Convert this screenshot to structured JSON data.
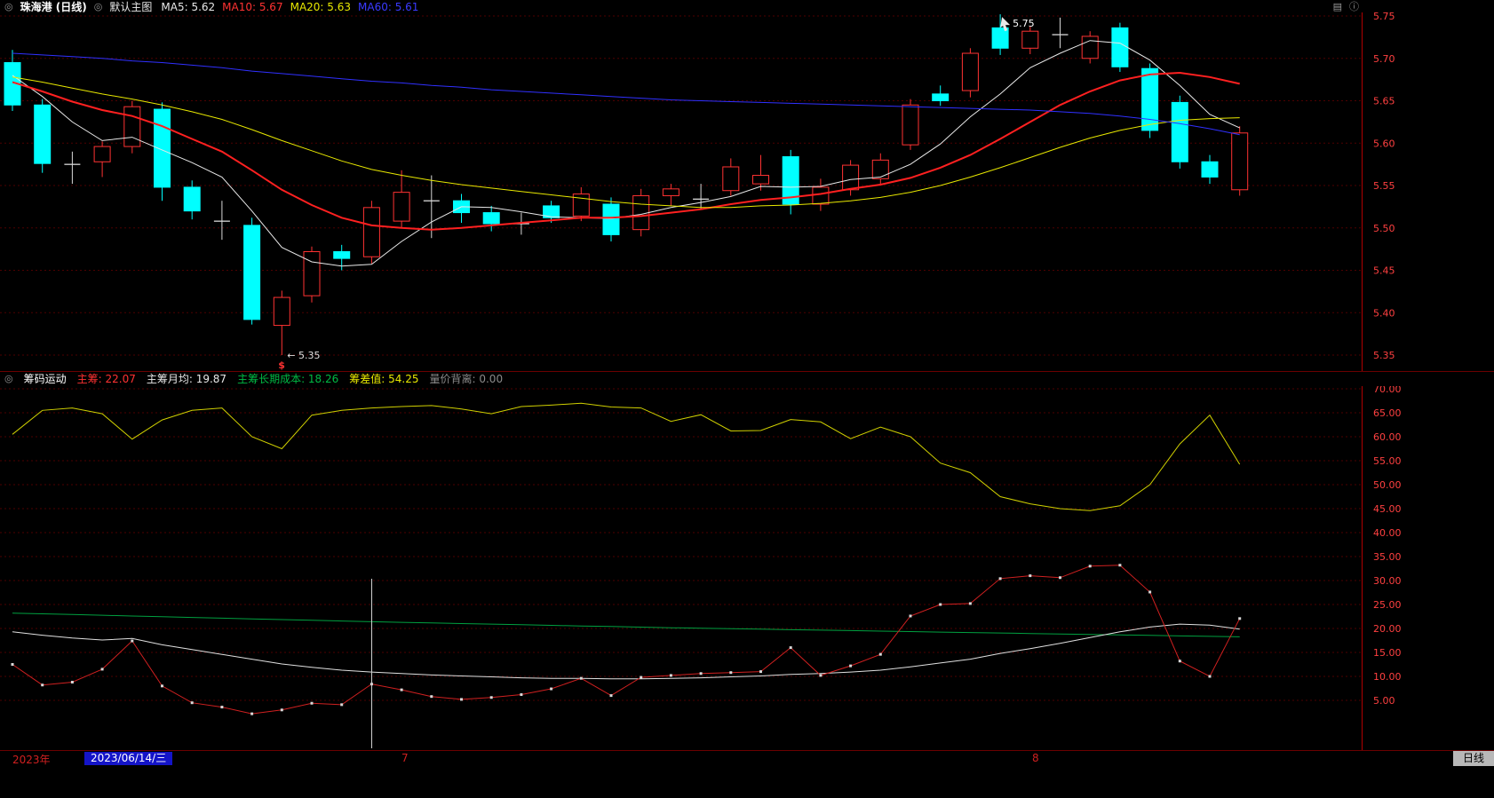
{
  "glyphs": {
    "toggle": "◎",
    "style_icon": "▤",
    "info_icon": "ⓘ"
  },
  "header": {
    "symbol": "珠海港 (日线)",
    "overlay": "默认主图",
    "ma5": "MA5: 5.62",
    "ma10": "MA10: 5.67",
    "ma20": "MA20: 5.63",
    "ma60": "MA60: 5.61"
  },
  "sub_header": {
    "title": "筹码运动",
    "f1": "主筹: 22.07",
    "f2": "主筹月均: 19.87",
    "f3": "主筹长期成本: 18.26",
    "f4": "筹差值: 54.25",
    "f5": "量价背离: 0.00"
  },
  "time_axis": {
    "year": "2023年",
    "selected_date": "2023/06/14/三",
    "months": [
      "7",
      "8"
    ],
    "period": "日线"
  },
  "chart_data": [
    {
      "type": "candlestick",
      "title": "珠海港 日线 主图",
      "y_axis_ticks": [
        "5.75",
        "5.70",
        "5.65",
        "5.60",
        "5.55",
        "5.50",
        "5.45",
        "5.40",
        "5.35"
      ],
      "ylim": [
        5.33,
        5.77
      ],
      "grid": true,
      "legend_position": "top-left",
      "up_color": "#ff3232",
      "down_color": "#00ffff",
      "candles": [
        [
          5.695,
          5.71,
          5.638,
          5.645
        ],
        [
          5.645,
          5.652,
          5.565,
          5.576
        ],
        [
          5.575,
          5.59,
          5.552,
          5.575
        ],
        [
          5.578,
          5.602,
          5.56,
          5.596
        ],
        [
          5.596,
          5.65,
          5.588,
          5.643
        ],
        [
          5.64,
          5.648,
          5.532,
          5.548
        ],
        [
          5.548,
          5.556,
          5.51,
          5.52
        ],
        [
          5.508,
          5.532,
          5.486,
          5.508
        ],
        [
          5.503,
          5.512,
          5.386,
          5.392
        ],
        [
          5.385,
          5.426,
          5.35,
          5.418
        ],
        [
          5.42,
          5.478,
          5.412,
          5.472
        ],
        [
          5.472,
          5.48,
          5.45,
          5.464
        ],
        [
          5.466,
          5.532,
          5.458,
          5.524
        ],
        [
          5.508,
          5.568,
          5.5,
          5.542
        ],
        [
          5.532,
          5.562,
          5.488,
          5.532
        ],
        [
          5.532,
          5.54,
          5.506,
          5.518
        ],
        [
          5.518,
          5.526,
          5.496,
          5.505
        ],
        [
          5.505,
          5.518,
          5.492,
          5.505
        ],
        [
          5.526,
          5.532,
          5.506,
          5.512
        ],
        [
          5.514,
          5.548,
          5.508,
          5.54
        ],
        [
          5.528,
          5.536,
          5.484,
          5.492
        ],
        [
          5.498,
          5.546,
          5.49,
          5.538
        ],
        [
          5.538,
          5.552,
          5.526,
          5.546
        ],
        [
          5.534,
          5.552,
          5.522,
          5.534
        ],
        [
          5.544,
          5.582,
          5.538,
          5.572
        ],
        [
          5.552,
          5.586,
          5.544,
          5.562
        ],
        [
          5.584,
          5.592,
          5.516,
          5.528
        ],
        [
          5.528,
          5.558,
          5.52,
          5.548
        ],
        [
          5.545,
          5.58,
          5.538,
          5.574
        ],
        [
          5.558,
          5.588,
          5.55,
          5.58
        ],
        [
          5.598,
          5.652,
          5.592,
          5.645
        ],
        [
          5.658,
          5.668,
          5.644,
          5.65
        ],
        [
          5.662,
          5.712,
          5.654,
          5.706
        ],
        [
          5.736,
          5.752,
          5.704,
          5.712
        ],
        [
          5.712,
          5.738,
          5.705,
          5.732
        ],
        [
          5.728,
          5.748,
          5.712,
          5.728
        ],
        [
          5.7,
          5.732,
          5.694,
          5.726
        ],
        [
          5.736,
          5.742,
          5.684,
          5.69
        ],
        [
          5.688,
          5.694,
          5.606,
          5.615
        ],
        [
          5.648,
          5.656,
          5.57,
          5.578
        ],
        [
          5.578,
          5.586,
          5.552,
          5.56
        ],
        [
          5.545,
          5.62,
          5.538,
          5.612
        ]
      ],
      "series": [
        {
          "name": "MA5",
          "color": "#e8e8e8",
          "width": 1,
          "values": [
            5.68,
            5.655,
            5.625,
            5.603,
            5.607,
            5.592,
            5.577,
            5.56,
            5.52,
            5.477,
            5.46,
            5.455,
            5.457,
            5.484,
            5.507,
            5.525,
            5.524,
            5.519,
            5.513,
            5.512,
            5.511,
            5.516,
            5.524,
            5.53,
            5.537,
            5.549,
            5.548,
            5.549,
            5.557,
            5.56,
            5.575,
            5.599,
            5.631,
            5.658,
            5.689,
            5.706,
            5.721,
            5.718,
            5.698,
            5.668,
            5.634,
            5.618
          ]
        },
        {
          "name": "MA10",
          "color": "#ff2020",
          "width": 2,
          "values": [
            5.672,
            5.661,
            5.649,
            5.639,
            5.632,
            5.62,
            5.605,
            5.59,
            5.568,
            5.545,
            5.527,
            5.512,
            5.503,
            5.5,
            5.498,
            5.5,
            5.503,
            5.506,
            5.509,
            5.512,
            5.512,
            5.514,
            5.518,
            5.522,
            5.528,
            5.533,
            5.536,
            5.54,
            5.546,
            5.551,
            5.559,
            5.571,
            5.586,
            5.605,
            5.625,
            5.645,
            5.661,
            5.674,
            5.681,
            5.683,
            5.678,
            5.67
          ]
        },
        {
          "name": "MA20",
          "color": "#e8e800",
          "width": 1,
          "values": [
            5.678,
            5.672,
            5.665,
            5.658,
            5.652,
            5.645,
            5.637,
            5.628,
            5.616,
            5.603,
            5.591,
            5.579,
            5.569,
            5.562,
            5.556,
            5.551,
            5.547,
            5.543,
            5.539,
            5.535,
            5.531,
            5.528,
            5.526,
            5.524,
            5.524,
            5.526,
            5.527,
            5.529,
            5.532,
            5.536,
            5.542,
            5.55,
            5.56,
            5.571,
            5.583,
            5.595,
            5.606,
            5.615,
            5.622,
            5.627,
            5.629,
            5.63
          ]
        },
        {
          "name": "MA60",
          "color": "#3030ff",
          "width": 1,
          "values": [
            5.706,
            5.704,
            5.702,
            5.7,
            5.697,
            5.695,
            5.692,
            5.689,
            5.685,
            5.682,
            5.679,
            5.676,
            5.673,
            5.671,
            5.668,
            5.666,
            5.663,
            5.661,
            5.659,
            5.657,
            5.655,
            5.653,
            5.651,
            5.65,
            5.649,
            5.648,
            5.647,
            5.646,
            5.645,
            5.644,
            5.643,
            5.642,
            5.641,
            5.64,
            5.639,
            5.637,
            5.635,
            5.632,
            5.628,
            5.623,
            5.617,
            5.61
          ]
        }
      ],
      "annotations": {
        "high_label": "5.75",
        "high_index": 33,
        "low_label": "← 5.35",
        "low_index": 9,
        "dividend_label": "$"
      }
    },
    {
      "type": "line",
      "title": "筹码运动",
      "y_axis_ticks": [
        "70.00",
        "65.00",
        "60.00",
        "55.00",
        "50.00",
        "45.00",
        "40.00",
        "35.00",
        "30.00",
        "25.00",
        "20.00",
        "15.00",
        "10.00",
        "5.00"
      ],
      "ylim": [
        0,
        72
      ],
      "grid": true,
      "series": [
        {
          "name": "筹差值",
          "color": "#d0d000",
          "width": 1,
          "values": [
            60.5,
            65.5,
            66.0,
            64.8,
            59.5,
            63.5,
            65.5,
            66.0,
            60.0,
            57.5,
            64.5,
            65.5,
            66.0,
            66.3,
            66.5,
            65.8,
            64.8,
            66.3,
            66.6,
            67.0,
            66.2,
            66.0,
            63.2,
            64.6,
            61.2,
            61.3,
            63.6,
            63.1,
            59.6,
            62.0,
            60.0,
            54.5,
            52.5,
            47.5,
            46.0,
            45.0,
            44.6,
            45.6,
            50.0,
            58.5,
            64.5,
            54.25
          ]
        },
        {
          "name": "主筹长期成本",
          "color": "#00a040",
          "width": 1,
          "values": [
            23.2,
            23.05,
            22.9,
            22.75,
            22.6,
            22.45,
            22.3,
            22.15,
            22.0,
            21.85,
            21.7,
            21.55,
            21.4,
            21.28,
            21.15,
            21.02,
            20.9,
            20.78,
            20.65,
            20.52,
            20.4,
            20.28,
            20.15,
            20.05,
            19.95,
            19.85,
            19.75,
            19.65,
            19.55,
            19.45,
            19.35,
            19.25,
            19.15,
            19.05,
            18.95,
            18.85,
            18.75,
            18.65,
            18.55,
            18.45,
            18.35,
            18.26
          ]
        },
        {
          "name": "主筹月均",
          "color": "#e0e0e0",
          "width": 1,
          "values": [
            19.3,
            18.6,
            18.0,
            17.6,
            17.9,
            16.6,
            15.6,
            14.6,
            13.6,
            12.6,
            11.9,
            11.3,
            10.9,
            10.6,
            10.3,
            10.1,
            9.9,
            9.7,
            9.6,
            9.6,
            9.5,
            9.5,
            9.6,
            9.7,
            9.9,
            10.1,
            10.4,
            10.6,
            10.9,
            11.3,
            12.0,
            12.8,
            13.6,
            14.8,
            15.8,
            16.9,
            18.1,
            19.3,
            20.3,
            20.9,
            20.7,
            19.87
          ]
        },
        {
          "name": "主筹",
          "color": "#d02020",
          "width": 1,
          "markers": true,
          "values": [
            12.5,
            8.2,
            8.8,
            11.5,
            17.4,
            8.0,
            4.5,
            3.6,
            2.2,
            3.0,
            4.4,
            4.1,
            8.4,
            7.2,
            5.8,
            5.2,
            5.6,
            6.2,
            7.4,
            9.6,
            6.0,
            9.8,
            10.2,
            10.6,
            10.8,
            11.0,
            16.0,
            10.2,
            12.2,
            14.6,
            22.6,
            25.0,
            25.2,
            30.4,
            31.0,
            30.6,
            33.0,
            33.2,
            27.6,
            13.2,
            10.0,
            22.07
          ]
        }
      ]
    }
  ]
}
